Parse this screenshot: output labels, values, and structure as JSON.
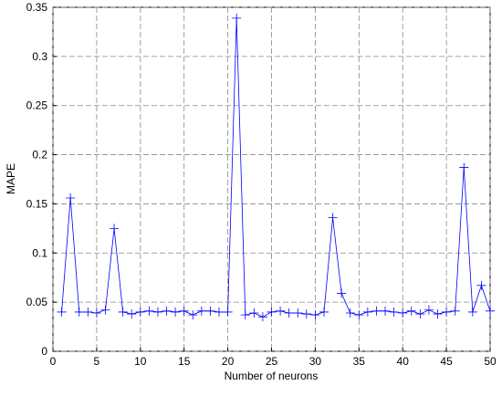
{
  "chart_data": {
    "type": "line",
    "xlabel": "Number of neurons",
    "ylabel": "MAPE",
    "x": [
      1,
      2,
      3,
      4,
      5,
      6,
      7,
      8,
      9,
      10,
      11,
      12,
      13,
      14,
      15,
      16,
      17,
      18,
      19,
      20,
      21,
      22,
      23,
      24,
      25,
      26,
      27,
      28,
      29,
      30,
      31,
      32,
      33,
      34,
      35,
      36,
      37,
      38,
      39,
      40,
      41,
      42,
      43,
      44,
      45,
      46,
      47,
      48,
      49,
      50
    ],
    "series": [
      {
        "name": "MAPE",
        "color": "#0000ff",
        "values": [
          0.04,
          0.156,
          0.04,
          0.04,
          0.039,
          0.042,
          0.125,
          0.04,
          0.038,
          0.04,
          0.041,
          0.04,
          0.041,
          0.04,
          0.041,
          0.037,
          0.041,
          0.041,
          0.04,
          0.04,
          0.339,
          0.037,
          0.039,
          0.035,
          0.04,
          0.041,
          0.039,
          0.039,
          0.038,
          0.037,
          0.04,
          0.136,
          0.059,
          0.039,
          0.037,
          0.04,
          0.041,
          0.041,
          0.04,
          0.039,
          0.041,
          0.038,
          0.042,
          0.038,
          0.04,
          0.041,
          0.187,
          0.04,
          0.067,
          0.041
        ]
      }
    ],
    "xlim": [
      0,
      50
    ],
    "ylim": [
      0,
      0.35
    ],
    "xticks": [
      0,
      5,
      10,
      15,
      20,
      25,
      30,
      35,
      40,
      45,
      50
    ],
    "yticks": [
      0,
      0.05,
      0.1,
      0.15,
      0.2,
      0.25,
      0.3,
      0.35
    ],
    "grid": true
  }
}
